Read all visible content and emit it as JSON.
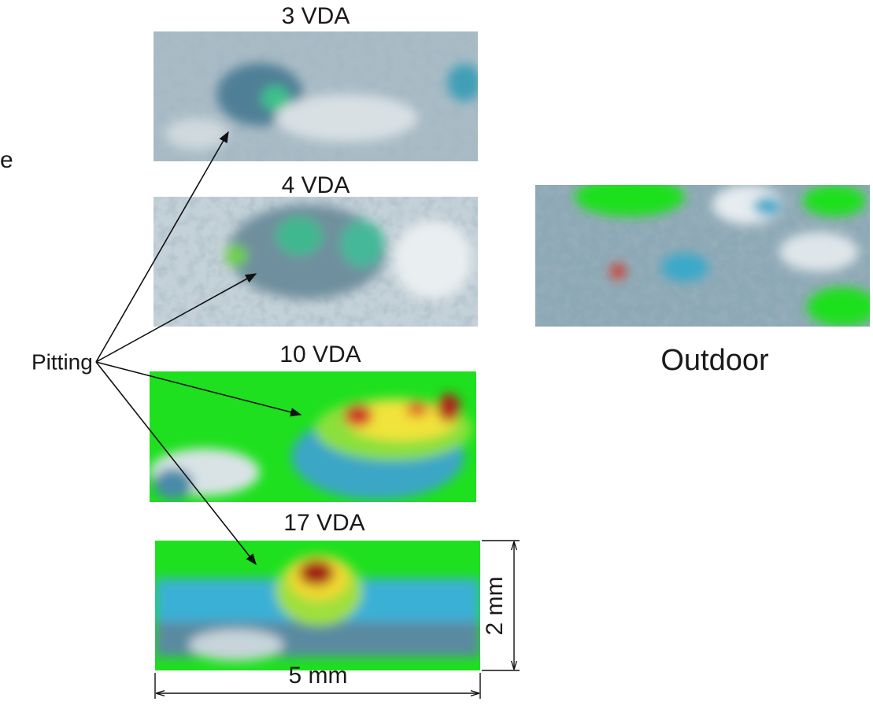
{
  "edge_text": "e",
  "panels": [
    {
      "label": "3 VDA"
    },
    {
      "label": "4 VDA"
    },
    {
      "label": "10 VDA"
    },
    {
      "label": "17 VDA"
    }
  ],
  "outdoor": {
    "label": "Outdoor"
  },
  "annotation": "Pitting",
  "dimensions": {
    "height": "2 mm",
    "width": "5 mm"
  }
}
